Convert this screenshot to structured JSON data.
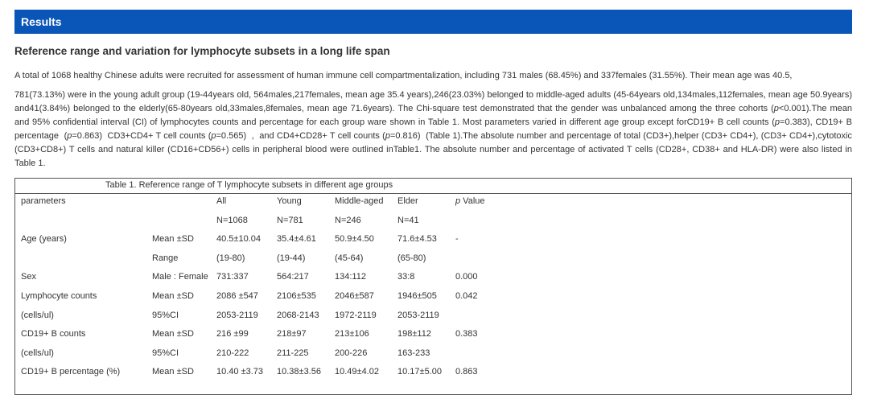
{
  "header": {
    "title": "Results"
  },
  "section": {
    "title": "Reference range and variation for lymphocyte subsets in a long life span",
    "paragraph1": "A total of 1068 healthy Chinese adults were recruited for assessment of human immune cell compartmentalization, including 731 males (68.45%) and 337females (31.55%). Their mean age was 40.5,",
    "paragraph2": [
      "781(73.13%) were in the young adult group (19-44years old, 564males,217females, mean age 35.4 years),246(23.03%) belonged to middle-aged adults (45-64years old,134males,112females, mean age 50.9years) and41(3.84%) belonged to the elderly(65-80years old,33males,8females, mean age 71.6years). The Chi-square test demonstrated that the gender was unbalanced among the three cohorts (",
      "p",
      "<0.001).The mean and 95% confidential interval (CI) of lymphocytes counts and percentage for each group ware shown in Table 1. Most parameters varied in different age group except forCD19+ B cell counts (",
      "p",
      "=0.383), CD19+ B percentage  (",
      "p",
      "=0.863)  CD3+CD4+ T cell counts (",
      "p",
      "=0.565)  ,  and CD4+CD28+ T cell counts (",
      "p",
      "=0.816)  (Table 1).The absolute number and percentage of total (CD3+),helper (CD3+ CD4+), (CD3+ CD4+),cytotoxic (CD3+CD8+) T cells and natural killer (CD16+CD56+) cells in peripheral blood were outlined inTable1. The absolute number and percentage of activated T cells (CD28+, CD38+ and HLA-DR) were also listed in Table 1."
    ]
  },
  "table": {
    "caption": "Table 1. Reference range of T lymphocyte subsets in different age groups",
    "rows": [
      [
        "parameters",
        null,
        "All",
        "Young",
        "Middle-aged",
        "Elder",
        "p Value"
      ],
      [
        null,
        null,
        "N=1068",
        "N=781",
        "N=246",
        "N=41",
        null
      ],
      [
        "Age (years)",
        "Mean ±SD",
        "40.5±10.04",
        "35.4±4.61",
        "50.9±4.50",
        "71.6±4.53",
        "-"
      ],
      [
        null,
        "Range",
        "(19-80)",
        "(19-44)",
        "(45-64)",
        "(65-80)",
        null
      ],
      [
        "Sex",
        "Male : Female",
        "731:337",
        "564:217",
        "134:112",
        "33:8",
        "0.000"
      ],
      [
        "Lymphocyte counts",
        "Mean ±SD",
        "2086 ±547",
        "2106±535",
        "2046±587",
        "1946±505",
        "0.042"
      ],
      [
        "(cells/ul)",
        "95%CI",
        "2053-2119",
        "2068-2143",
        "1972-2119",
        "2053-2119",
        null
      ],
      [
        "CD19+ B counts",
        "Mean ±SD",
        "216 ±99",
        "218±97",
        "213±106",
        "198±112",
        "0.383"
      ],
      [
        "(cells/ul)",
        "95%CI",
        "210-222",
        "211-225",
        "200-226",
        "163-233",
        null
      ],
      [
        "CD19+ B percentage (%)",
        "Mean ±SD",
        "10.40 ±3.73",
        "10.38±3.56",
        "10.49±4.02",
        "10.17±5.00",
        "0.863"
      ]
    ]
  }
}
